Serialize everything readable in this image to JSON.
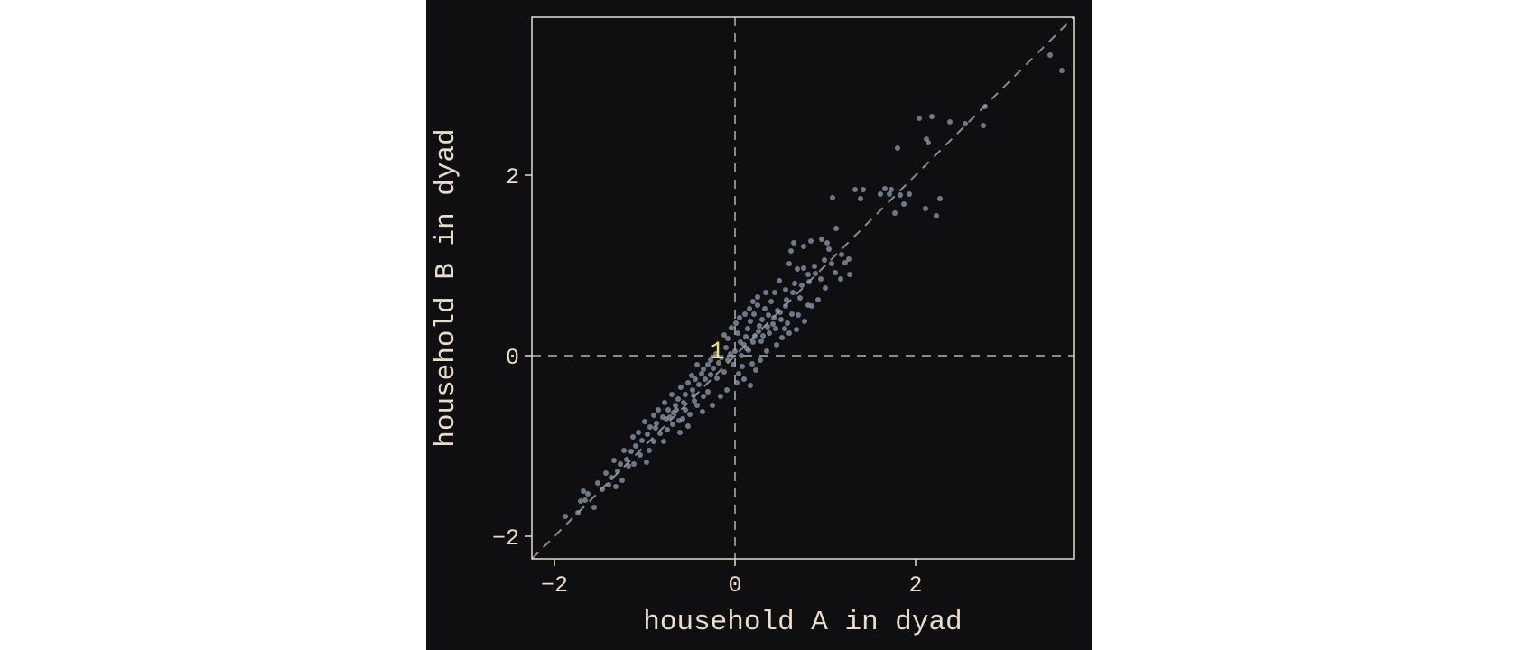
{
  "chart_data": {
    "type": "scatter",
    "xlabel": "household A in dyad",
    "ylabel": "household B in dyad",
    "xlim": [
      -2.25,
      3.75
    ],
    "ylim": [
      -2.25,
      3.75
    ],
    "xticks": [
      -2,
      0,
      2
    ],
    "yticks": [
      -2,
      0,
      2
    ],
    "xtick_labels": [
      "−2",
      "0",
      "2"
    ],
    "ytick_labels": [
      "−2",
      "0",
      "2"
    ],
    "grid": false,
    "reference_lines": [
      {
        "type": "vertical",
        "x": 0,
        "style": "dashed"
      },
      {
        "type": "horizontal",
        "y": 0,
        "style": "dashed"
      },
      {
        "type": "diagonal",
        "slope": 1,
        "intercept": 0,
        "style": "dashed"
      }
    ],
    "annotations": [
      {
        "text": "1",
        "x": -0.2,
        "y": 0.06,
        "color": "#f2dd8a"
      }
    ],
    "colors": {
      "background": "#0f0f11",
      "frame": "#e8dccb",
      "text": "#e8dccb",
      "points": "#8e9cb2",
      "reference_lines": "#8a8a8a"
    },
    "points": [
      [
        3.49,
        3.33
      ],
      [
        3.62,
        3.16
      ],
      [
        2.77,
        2.76
      ],
      [
        2.75,
        2.55
      ],
      [
        2.55,
        2.57
      ],
      [
        2.38,
        2.59
      ],
      [
        2.18,
        2.65
      ],
      [
        2.04,
        2.63
      ],
      [
        2.14,
        2.36
      ],
      [
        2.12,
        2.4
      ],
      [
        1.8,
        2.3
      ],
      [
        2.11,
        1.63
      ],
      [
        2.27,
        1.74
      ],
      [
        2.23,
        1.55
      ],
      [
        1.93,
        1.79
      ],
      [
        1.87,
        1.68
      ],
      [
        1.83,
        1.78
      ],
      [
        1.73,
        1.84
      ],
      [
        1.66,
        1.85
      ],
      [
        1.71,
        1.79
      ],
      [
        1.77,
        1.58
      ],
      [
        1.42,
        1.84
      ],
      [
        1.33,
        1.84
      ],
      [
        1.08,
        1.75
      ],
      [
        1.39,
        1.74
      ],
      [
        1.61,
        1.79
      ],
      [
        1.27,
        0.9
      ],
      [
        1.26,
        1.07
      ],
      [
        1.22,
        1.03
      ],
      [
        1.18,
        1.12
      ],
      [
        1.07,
        1.02
      ],
      [
        1.04,
        1.18
      ],
      [
        0.99,
        1.06
      ],
      [
        0.95,
        0.85
      ],
      [
        1.11,
        0.92
      ],
      [
        1.17,
        0.85
      ],
      [
        1.02,
        1.25
      ],
      [
        0.96,
        1.29
      ],
      [
        0.84,
        1.27
      ],
      [
        0.76,
        1.21
      ],
      [
        0.65,
        1.25
      ],
      [
        0.62,
        1.16
      ],
      [
        0.6,
        1.02
      ],
      [
        0.69,
        0.96
      ],
      [
        0.76,
        0.97
      ],
      [
        0.81,
        0.9
      ],
      [
        0.88,
        0.99
      ],
      [
        1.12,
        1.41
      ],
      [
        0.81,
        0.56
      ],
      [
        0.72,
        0.64
      ],
      [
        0.66,
        0.8
      ],
      [
        0.56,
        0.73
      ],
      [
        0.49,
        0.83
      ],
      [
        0.44,
        0.7
      ],
      [
        0.4,
        0.6
      ],
      [
        0.47,
        0.5
      ],
      [
        0.56,
        0.55
      ],
      [
        0.63,
        0.46
      ],
      [
        0.68,
        0.29
      ],
      [
        0.6,
        0.25
      ],
      [
        0.55,
        0.3
      ],
      [
        0.51,
        0.4
      ],
      [
        0.42,
        0.35
      ],
      [
        0.37,
        0.45
      ],
      [
        0.33,
        0.52
      ],
      [
        0.3,
        0.4
      ],
      [
        0.27,
        0.33
      ],
      [
        0.25,
        0.56
      ],
      [
        0.21,
        0.46
      ],
      [
        0.17,
        0.38
      ],
      [
        0.14,
        0.3
      ],
      [
        0.12,
        0.21
      ],
      [
        0.1,
        0.12
      ],
      [
        0.06,
        0.15
      ],
      [
        0.03,
        0.25
      ],
      [
        0.01,
        0.36
      ],
      [
        0.05,
        0.42
      ],
      [
        0.11,
        0.46
      ],
      [
        0.16,
        0.52
      ],
      [
        0.2,
        0.6
      ],
      [
        0.25,
        0.65
      ],
      [
        0.34,
        0.7
      ],
      [
        0.29,
        0.16
      ],
      [
        0.22,
        0.22
      ],
      [
        0.15,
        0.06
      ],
      [
        0.19,
        -0.09
      ],
      [
        0.23,
        -0.16
      ],
      [
        0.17,
        -0.33
      ],
      [
        0.1,
        -0.26
      ],
      [
        0.04,
        -0.2
      ],
      [
        -0.02,
        -0.1
      ],
      [
        -0.05,
        0.02
      ],
      [
        -0.1,
        0.09
      ],
      [
        -0.08,
        0.19
      ],
      [
        -0.04,
        0.31
      ],
      [
        -0.12,
        0.23
      ],
      [
        -0.15,
        -0.02
      ],
      [
        -0.18,
        -0.08
      ],
      [
        -0.21,
        0.02
      ],
      [
        -0.24,
        -0.14
      ],
      [
        -0.27,
        -0.21
      ],
      [
        -0.3,
        -0.1
      ],
      [
        -0.33,
        -0.26
      ],
      [
        -0.37,
        -0.2
      ],
      [
        -0.4,
        -0.32
      ],
      [
        -0.44,
        -0.26
      ],
      [
        -0.47,
        -0.38
      ],
      [
        -0.52,
        -0.3
      ],
      [
        -0.55,
        -0.43
      ],
      [
        -0.6,
        -0.35
      ],
      [
        -0.63,
        -0.48
      ],
      [
        -0.66,
        -0.55
      ],
      [
        -0.7,
        -0.43
      ],
      [
        -0.74,
        -0.6
      ],
      [
        -0.78,
        -0.52
      ],
      [
        -0.8,
        -0.68
      ],
      [
        -0.85,
        -0.6
      ],
      [
        -0.87,
        -0.75
      ],
      [
        -0.9,
        -0.66
      ],
      [
        -0.94,
        -0.79
      ],
      [
        -0.97,
        -0.87
      ],
      [
        -1.0,
        -0.73
      ],
      [
        -1.03,
        -0.94
      ],
      [
        -1.07,
        -0.85
      ],
      [
        -1.1,
        -1.0
      ],
      [
        -1.13,
        -0.9
      ],
      [
        -1.15,
        -1.06
      ],
      [
        -1.2,
        -1.15
      ],
      [
        -1.23,
        -1.05
      ],
      [
        -1.27,
        -1.2
      ],
      [
        -1.3,
        -1.28
      ],
      [
        -1.34,
        -1.16
      ],
      [
        -1.37,
        -1.35
      ],
      [
        -1.4,
        -1.43
      ],
      [
        -1.43,
        -1.3
      ],
      [
        -1.47,
        -1.48
      ],
      [
        -1.52,
        -1.41
      ],
      [
        -1.56,
        -1.68
      ],
      [
        -1.63,
        -1.53
      ],
      [
        -1.66,
        -1.6
      ],
      [
        -1.71,
        -1.61
      ],
      [
        -1.68,
        -1.5
      ],
      [
        -1.74,
        -1.74
      ],
      [
        -1.88,
        -1.78
      ],
      [
        -0.55,
        -0.6
      ],
      [
        -0.5,
        -0.65
      ],
      [
        -0.58,
        -0.7
      ],
      [
        -0.62,
        -0.72
      ],
      [
        -0.69,
        -0.76
      ],
      [
        -0.75,
        -0.82
      ],
      [
        -0.83,
        -0.86
      ],
      [
        -0.45,
        -0.5
      ],
      [
        -0.42,
        -0.55
      ],
      [
        -0.35,
        -0.45
      ],
      [
        -0.3,
        -0.4
      ],
      [
        -0.65,
        -0.6
      ],
      [
        -0.72,
        -0.68
      ],
      [
        -0.9,
        -0.95
      ],
      [
        -1.05,
        -1.1
      ],
      [
        -1.12,
        -1.2
      ],
      [
        -1.18,
        -1.22
      ],
      [
        -0.2,
        -0.25
      ],
      [
        -0.12,
        -0.18
      ],
      [
        -0.08,
        -0.05
      ],
      [
        0.0,
        0.05
      ],
      [
        0.07,
        0.0
      ],
      [
        0.13,
        0.08
      ],
      [
        0.31,
        0.22
      ],
      [
        0.38,
        0.25
      ],
      [
        0.45,
        0.3
      ],
      [
        0.52,
        0.2
      ],
      [
        0.58,
        0.36
      ],
      [
        0.35,
        0.05
      ],
      [
        0.28,
        -0.05
      ],
      [
        0.46,
        0.12
      ],
      [
        0.7,
        0.45
      ],
      [
        0.77,
        0.38
      ],
      [
        0.85,
        0.55
      ],
      [
        0.92,
        0.62
      ],
      [
        1.0,
        0.75
      ],
      [
        -0.35,
        -0.15
      ],
      [
        -0.42,
        -0.1
      ],
      [
        -0.48,
        -0.22
      ],
      [
        -0.27,
        -0.05
      ],
      [
        0.02,
        -0.3
      ],
      [
        -0.09,
        -0.38
      ],
      [
        0.08,
        -0.12
      ],
      [
        -0.16,
        -0.45
      ],
      [
        -0.25,
        -0.55
      ],
      [
        -0.36,
        -0.62
      ],
      [
        -0.52,
        -0.78
      ],
      [
        -0.61,
        -0.85
      ],
      [
        -0.79,
        -0.95
      ],
      [
        -0.95,
        -1.05
      ],
      [
        -0.98,
        -1.18
      ],
      [
        -1.25,
        -1.38
      ],
      [
        -1.32,
        -1.45
      ],
      [
        -0.88,
        -0.8
      ],
      [
        -0.76,
        -0.7
      ],
      [
        -0.68,
        -0.63
      ],
      [
        -0.57,
        -0.52
      ],
      [
        -0.46,
        -0.44
      ],
      [
        0.2,
        0.15
      ],
      [
        0.26,
        0.27
      ],
      [
        0.36,
        0.32
      ],
      [
        0.43,
        0.42
      ],
      [
        0.5,
        0.48
      ],
      [
        0.57,
        0.62
      ],
      [
        0.64,
        0.7
      ],
      [
        0.74,
        0.78
      ],
      [
        0.82,
        0.82
      ],
      [
        0.89,
        0.91
      ]
    ]
  }
}
